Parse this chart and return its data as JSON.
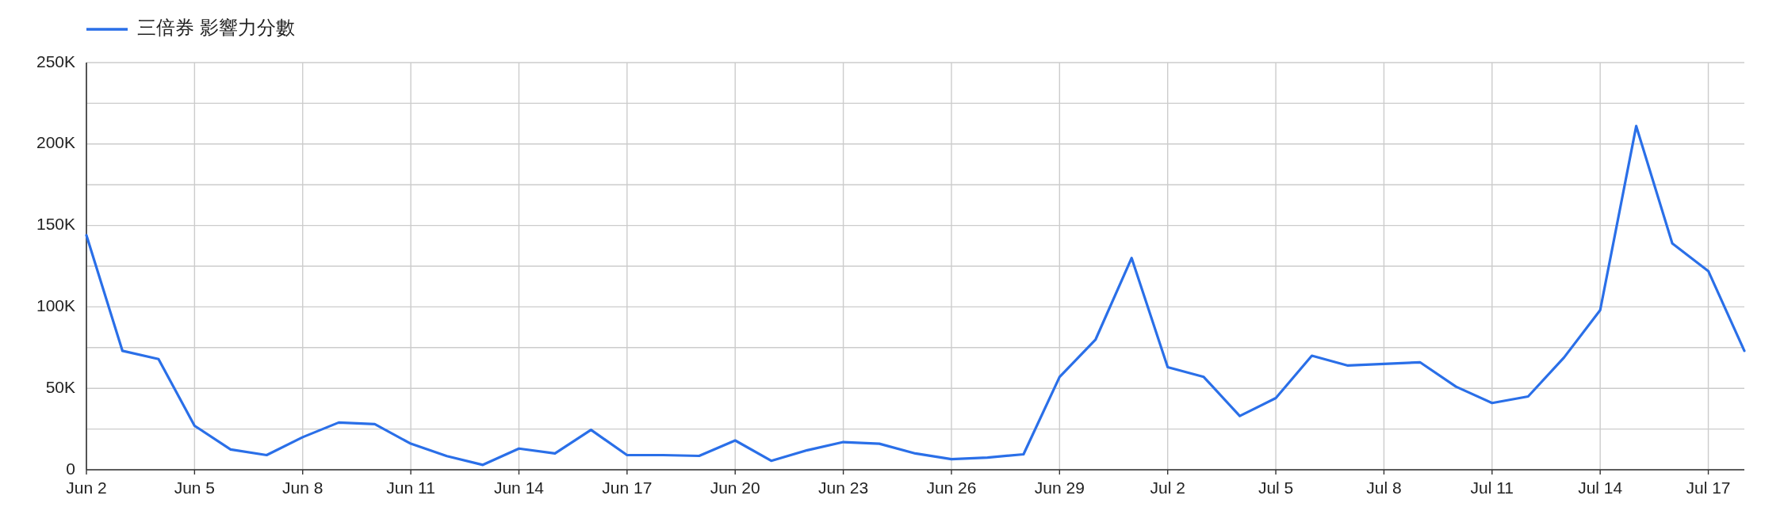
{
  "chart_data": {
    "type": "line",
    "legend": "top left",
    "grid": true,
    "marker": "none",
    "line_style": "solid",
    "x": [
      "--06-02",
      "--06-03",
      "--06-04",
      "--06-05",
      "--06-06",
      "--06-07",
      "--06-08",
      "--06-09",
      "--06-10",
      "--06-11",
      "--06-12",
      "--06-13",
      "--06-14",
      "--06-15",
      "--06-16",
      "--06-17",
      "--06-18",
      "--06-19",
      "--06-20",
      "--06-21",
      "--06-22",
      "--06-23",
      "--06-24",
      "--06-25",
      "--06-26",
      "--06-27",
      "--06-28",
      "--06-29",
      "--06-30",
      "--07-01",
      "--07-02",
      "--07-03",
      "--07-04",
      "--07-05",
      "--07-06",
      "--07-07",
      "--07-08",
      "--07-09",
      "--07-10",
      "--07-11",
      "--07-12",
      "--07-13",
      "--07-14",
      "--07-15",
      "--07-16",
      "--07-17",
      "--07-18"
    ],
    "series": [
      {
        "name": "三倍券 影響力分數",
        "color": "#2a6fe8",
        "values": [
          144000,
          73000,
          68000,
          27000,
          12500,
          9000,
          20000,
          29000,
          28000,
          16000,
          8400,
          3000,
          13000,
          10000,
          24500,
          9000,
          9000,
          8500,
          18000,
          5500,
          12000,
          17000,
          16000,
          10000,
          6500,
          7500,
          9500,
          57000,
          80000,
          130000,
          63000,
          57000,
          33000,
          44000,
          70000,
          64000,
          65000,
          66000,
          51000,
          41000,
          45000,
          69000,
          98000,
          211000,
          139000,
          122000,
          73000
        ]
      }
    ],
    "xlim": [
      "--06-02",
      "--07-18"
    ],
    "xticks": [
      {
        "value": "--06-02",
        "label": "Jun 2"
      },
      {
        "value": "--06-05",
        "label": "Jun 5"
      },
      {
        "value": "--06-08",
        "label": "Jun 8"
      },
      {
        "value": "--06-11",
        "label": "Jun 11"
      },
      {
        "value": "--06-14",
        "label": "Jun 14"
      },
      {
        "value": "--06-17",
        "label": "Jun 17"
      },
      {
        "value": "--06-20",
        "label": "Jun 20"
      },
      {
        "value": "--06-23",
        "label": "Jun 23"
      },
      {
        "value": "--06-26",
        "label": "Jun 26"
      },
      {
        "value": "--06-29",
        "label": "Jun 29"
      },
      {
        "value": "--07-02",
        "label": "Jul 2"
      },
      {
        "value": "--07-05",
        "label": "Jul 5"
      },
      {
        "value": "--07-08",
        "label": "Jul 8"
      },
      {
        "value": "--07-11",
        "label": "Jul 11"
      },
      {
        "value": "--07-14",
        "label": "Jul 14"
      },
      {
        "value": "--07-17",
        "label": "Jul 17"
      }
    ],
    "ylim": [
      0,
      250000
    ],
    "yticks": [
      0,
      {
        "value": 25000,
        "label": null
      },
      {
        "value": 50000,
        "label": "50K"
      },
      {
        "value": 75000,
        "label": null
      },
      {
        "value": 100000,
        "label": "100K"
      },
      {
        "value": 125000,
        "label": null
      },
      {
        "value": 150000,
        "label": "150K"
      },
      {
        "value": 175000,
        "label": null
      },
      {
        "value": 200000,
        "label": "200K"
      },
      {
        "value": 225000,
        "label": null
      },
      {
        "value": 250000,
        "label": "250K"
      }
    ]
  }
}
